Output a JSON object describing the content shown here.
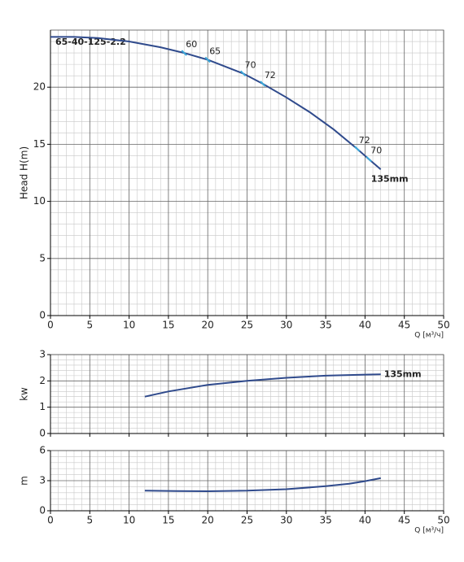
{
  "chart_data": [
    {
      "type": "line",
      "title": "65-40-125-2.2",
      "ylabel": "Head H(m)",
      "xlabel": "Q [м³/ч]",
      "xlim": [
        0,
        50
      ],
      "xticks": [
        0,
        5,
        10,
        15,
        20,
        25,
        30,
        35,
        40,
        45,
        50
      ],
      "x_tick_labels": true,
      "ylim": [
        0,
        25
      ],
      "yticks": [
        0,
        5,
        10,
        15,
        20
      ],
      "grid": true,
      "series": [
        {
          "name": "135mm",
          "color": "#2f4a8c",
          "x": [
            0,
            3,
            6,
            10,
            14,
            17,
            20,
            24.5,
            27,
            30,
            33,
            36,
            39,
            40.5,
            42
          ],
          "values": [
            24.4,
            24.4,
            24.3,
            24.0,
            23.5,
            23.0,
            22.4,
            21.2,
            20.3,
            19.1,
            17.8,
            16.3,
            14.6,
            13.7,
            12.8
          ]
        }
      ],
      "annotations": [
        {
          "value": 60,
          "x": 17,
          "y": 23.0
        },
        {
          "value": 65,
          "x": 20,
          "y": 22.4
        },
        {
          "value": 70,
          "x": 24.5,
          "y": 21.2
        },
        {
          "value": 72,
          "x": 27,
          "y": 20.3
        },
        {
          "value": 72,
          "x": 39,
          "y": 14.6
        },
        {
          "value": 70,
          "x": 40.5,
          "y": 13.7
        }
      ]
    },
    {
      "type": "line",
      "ylabel": "kw",
      "xlim": [
        0,
        50
      ],
      "xticks": [
        0,
        5,
        10,
        15,
        20,
        25,
        30,
        35,
        40,
        45,
        50
      ],
      "x_tick_labels": false,
      "ylim": [
        0,
        3
      ],
      "yticks": [
        0,
        1,
        2,
        3
      ],
      "grid": true,
      "series": [
        {
          "name": "135mm",
          "color": "#2f4a8c",
          "x": [
            12,
            15,
            20,
            25,
            30,
            35,
            40,
            42
          ],
          "values": [
            1.4,
            1.6,
            1.85,
            2.0,
            2.12,
            2.2,
            2.24,
            2.25
          ]
        }
      ]
    },
    {
      "type": "line",
      "ylabel": "m",
      "xlabel": "Q [м³/ч]",
      "xlim": [
        0,
        50
      ],
      "xticks": [
        0,
        5,
        10,
        15,
        20,
        25,
        30,
        35,
        40,
        45,
        50
      ],
      "x_tick_labels": true,
      "ylim": [
        0,
        6
      ],
      "yticks": [
        0,
        3,
        6
      ],
      "grid": true,
      "series": [
        {
          "color": "#2f4a8c",
          "x": [
            12,
            16,
            20,
            25,
            30,
            35,
            38,
            40,
            42
          ],
          "values": [
            2.0,
            1.97,
            1.95,
            2.0,
            2.15,
            2.45,
            2.7,
            2.95,
            3.25
          ]
        }
      ]
    }
  ]
}
